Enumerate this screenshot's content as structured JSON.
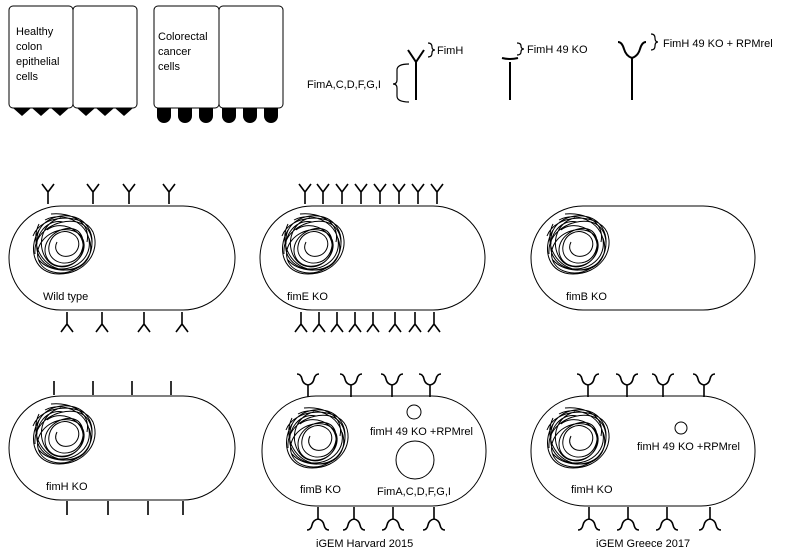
{
  "cells": {
    "healthy_label": [
      "Healthy",
      "colon",
      "epithelial",
      "cells"
    ],
    "cancer_label": [
      "Colorectal",
      "cancer",
      "cells"
    ]
  },
  "legend": {
    "fimh": "FimH",
    "fim_acdfgi": "FimA,C,D,F,G,I",
    "fimh_49_ko": "FimH 49 KO",
    "fimh_49_ko_rpmrel": "FimH 49 KO + RPMrel"
  },
  "bacteria": {
    "wild_type": "Wild type",
    "fime_ko": "fimE KO",
    "fimb_ko": "fimB KO",
    "fimh_ko": "fimH KO",
    "harvard_fimb_ko": "fimB KO",
    "harvard_rpmrel": "fimH 49 KO +RPMrel",
    "harvard_fim_acdfgi": "FimA,C,D,F,G,I",
    "greece_fimh_ko": "fimH KO",
    "greece_rpmrel": "fimH 49 KO +RPMrel"
  },
  "captions": {
    "harvard": "iGEM Harvard 2015",
    "greece": "iGEM Greece 2017"
  }
}
